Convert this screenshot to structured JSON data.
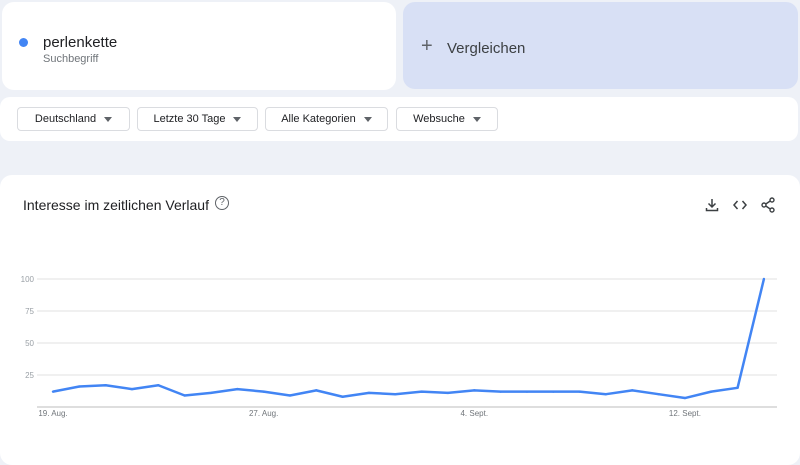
{
  "search_term": {
    "name": "perlenkette",
    "subtitle": "Suchbegriff",
    "color": "#4285f4"
  },
  "compare": {
    "icon": "plus-icon",
    "label": "Vergleichen"
  },
  "filters": [
    {
      "label": "Deutschland"
    },
    {
      "label": "Letzte 30 Tage"
    },
    {
      "label": "Alle Kategorien"
    },
    {
      "label": "Websuche"
    }
  ],
  "chart_card": {
    "title": "Interesse im zeitlichen Verlauf",
    "help_icon": "?",
    "actions": [
      "download-icon",
      "embed-code-icon",
      "share-icon"
    ]
  },
  "chart_data": {
    "type": "line",
    "x": [
      "19. Aug.",
      "20. Aug.",
      "21. Aug.",
      "22. Aug.",
      "23. Aug.",
      "24. Aug.",
      "25. Aug.",
      "26. Aug.",
      "27. Aug.",
      "28. Aug.",
      "29. Aug.",
      "30. Aug.",
      "31. Aug.",
      "1. Sept.",
      "2. Sept.",
      "3. Sept.",
      "4. Sept.",
      "5. Sept.",
      "6. Sept.",
      "7. Sept.",
      "8. Sept.",
      "9. Sept.",
      "10. Sept.",
      "11. Sept.",
      "12. Sept.",
      "13. Sept.",
      "14. Sept.",
      "15. Sept."
    ],
    "series": [
      {
        "color": "#4285f4",
        "values": [
          12,
          16,
          17,
          14,
          17,
          9,
          11,
          14,
          12,
          9,
          13,
          8,
          11,
          10,
          12,
          11,
          13,
          12,
          12,
          12,
          12,
          10,
          13,
          10,
          7,
          12,
          15,
          100
        ]
      }
    ],
    "x_tick_labels": [
      "19. Aug.",
      "27. Aug.",
      "4. Sept.",
      "12. Sept."
    ],
    "y_tick_labels": [
      "25",
      "50",
      "75",
      "100"
    ],
    "ylim": [
      0,
      100
    ],
    "grid": true
  }
}
